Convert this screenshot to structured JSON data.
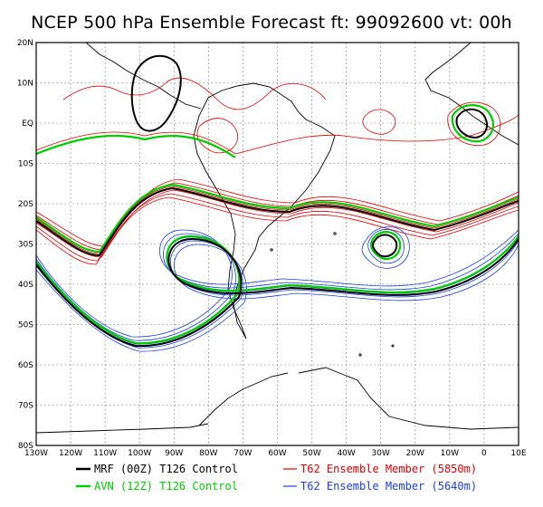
{
  "title": "NCEP 500 hPa Ensemble Forecast  ft: 99092600 vt: 00h",
  "lat_labels": [
    "20N",
    "10N",
    "EQ",
    "10S",
    "20S",
    "30S",
    "40S",
    "50S",
    "60S",
    "70S",
    "80S"
  ],
  "lon_labels": [
    "130W",
    "120W",
    "110W",
    "100W",
    "90W",
    "80W",
    "70W",
    "60W",
    "50W",
    "40W",
    "30W",
    "20W",
    "10W",
    "0",
    "10E"
  ],
  "legend": [
    {
      "label": "MRF (00Z) T126 Control",
      "color": "#000000"
    },
    {
      "label": "AVN (12Z) T126 Control",
      "color": "#00cc00"
    },
    {
      "label": "T62 Ensemble Member (5850m)",
      "color": "#e00000"
    },
    {
      "label": "T62 Ensemble Member (5640m)",
      "color": "#1a3fe0"
    }
  ],
  "colors": {
    "black": "#000000",
    "green": "#00cc00",
    "red": "#e00000",
    "blue": "#1a3fe0",
    "grid": "#555555"
  }
}
